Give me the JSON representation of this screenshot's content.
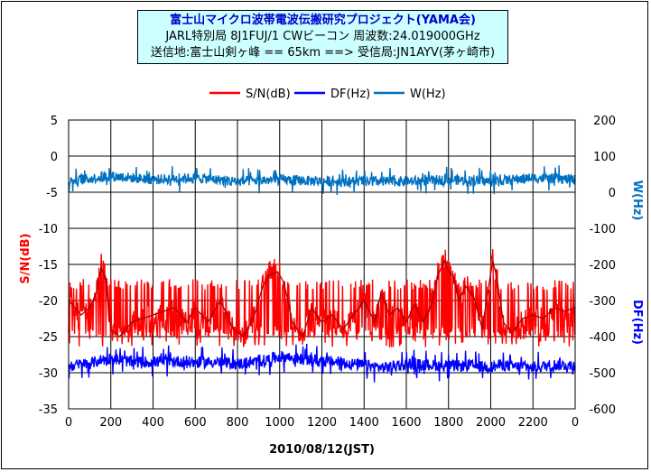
{
  "chart_data": {
    "type": "line",
    "title": "富士山マイクロ波帯電波伝搬研究プロジェクト(YAMA会)",
    "subtitle_1": "JARL特別局 8J1FUJ/1  CWビーコン 周波数:24.019000GHz",
    "subtitle_2": "送信地:富士山剣ヶ峰 == 65km ==> 受信局:JN1AYV(茅ヶ崎市)",
    "xlabel": "2010/08/12(JST)",
    "ylabel_left": "S/N(dB)",
    "ylabel_right": "DF(Hz)",
    "ylabel_right_top": "W(Hz)",
    "xlim": [
      0,
      2400
    ],
    "ylim_left": [
      -35,
      5
    ],
    "ylim_right": [
      -600,
      200
    ],
    "x_ticks": [
      "0",
      "200",
      "400",
      "600",
      "800",
      "1000",
      "1200",
      "1400",
      "1600",
      "1800",
      "2000",
      "2200",
      "0"
    ],
    "y_left_ticks": [
      "5",
      "0",
      "-5",
      "-10",
      "-15",
      "-20",
      "-25",
      "-30",
      "-35"
    ],
    "y_right_ticks": [
      "200",
      "100",
      "0",
      "-100",
      "-200",
      "-300",
      "-400",
      "-500",
      "-600"
    ],
    "grid": true,
    "legend_position": "top",
    "series": [
      {
        "name": "S/N(dB)",
        "axis": "left",
        "color": "#ff0000",
        "x": [
          0,
          60,
          100,
          130,
          155,
          175,
          200,
          240,
          300,
          400,
          500,
          560,
          600,
          660,
          720,
          780,
          830,
          880,
          920,
          950,
          990,
          1020,
          1060,
          1110,
          1150,
          1200,
          1250,
          1300,
          1350,
          1400,
          1450,
          1480,
          1520,
          1560,
          1600,
          1640,
          1680,
          1720,
          1750,
          1780,
          1800,
          1820,
          1850,
          1880,
          1920,
          1960,
          1990,
          2010,
          2030,
          2060,
          2100,
          2150,
          2200,
          2250,
          2300,
          2350,
          2400
        ],
        "y": [
          -20,
          -22,
          -21,
          -19,
          -15.5,
          -17,
          -24,
          -25,
          -23,
          -22,
          -21,
          -23,
          -21,
          -23,
          -20,
          -24,
          -25,
          -22,
          -18,
          -16.5,
          -16,
          -17.5,
          -23,
          -25,
          -21,
          -23,
          -22,
          -24,
          -22,
          -20,
          -23,
          -19,
          -22,
          -21,
          -23,
          -20.5,
          -23,
          -20.5,
          -16.5,
          -14.5,
          -16,
          -16.5,
          -20,
          -18,
          -19.5,
          -24,
          -18,
          -14.5,
          -17,
          -23,
          -24.5,
          -22.5,
          -22,
          -22.5,
          -21,
          -21.5,
          -21
        ],
        "band_min": -25,
        "band_max": -17
      },
      {
        "name": "DF(Hz)",
        "axis": "right",
        "color": "#0000ff",
        "x": [
          0,
          100,
          150,
          200,
          300,
          400,
          500,
          600,
          700,
          800,
          900,
          1000,
          1100,
          1200,
          1300,
          1400,
          1500,
          1560,
          1600,
          1700,
          1800,
          1900,
          2000,
          2050,
          2100,
          2200,
          2300,
          2400
        ],
        "y": [
          -480,
          -475,
          -465,
          -460,
          -470,
          -470,
          -468,
          -472,
          -470,
          -475,
          -470,
          -455,
          -462,
          -468,
          -472,
          -480,
          -486,
          -480,
          -475,
          -478,
          -482,
          -480,
          -485,
          -478,
          -482,
          -485,
          -478,
          -480
        ],
        "band": 40
      },
      {
        "name": "W(Hz)",
        "axis": "right",
        "color": "#0070c0",
        "x": [
          0,
          200,
          400,
          600,
          800,
          1000,
          1200,
          1400,
          1600,
          1800,
          2000,
          2200,
          2400
        ],
        "y": [
          30,
          45,
          35,
          40,
          30,
          35,
          30,
          30,
          30,
          35,
          30,
          40,
          35
        ],
        "band": 35
      }
    ]
  }
}
